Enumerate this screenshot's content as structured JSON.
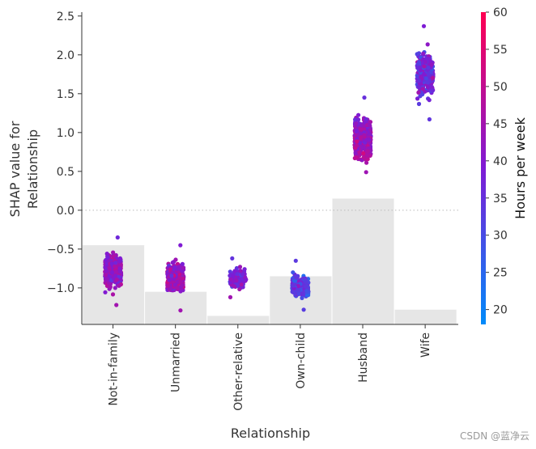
{
  "chart_data": {
    "type": "scatter",
    "subtype": "shap-dependence-strip",
    "title": "",
    "xlabel": "Relationship",
    "ylabel_lines": [
      "SHAP value for",
      "Relationship"
    ],
    "categories": [
      "Not-in-family",
      "Unmarried",
      "Other-relative",
      "Own-child",
      "Husband",
      "Wife"
    ],
    "ylim": [
      -1.47,
      2.55
    ],
    "yticks": [
      -1.0,
      -0.5,
      0.0,
      0.5,
      1.0,
      1.5,
      2.0,
      2.5
    ],
    "ytick_labels": [
      "−1.0",
      "−0.5",
      "0.0",
      "0.5",
      "1.0",
      "1.5",
      "2.0",
      "2.5"
    ],
    "zero_line": "dotted",
    "histogram_background": {
      "description_units": "SHAP-axis level of the grey distribution bars behind each category",
      "tops": [
        -0.45,
        -1.05,
        -1.36,
        -0.85,
        0.15,
        -1.28
      ]
    },
    "series": [
      {
        "name": "Not-in-family",
        "count": 420,
        "ymin": -1.22,
        "ymax": -0.35,
        "center": -0.78,
        "spread": 0.19,
        "color_mean": 42,
        "color_sd": 8
      },
      {
        "name": "Unmarried",
        "count": 300,
        "ymin": -1.29,
        "ymax": -0.45,
        "center": -0.86,
        "spread": 0.16,
        "color_mean": 43,
        "color_sd": 9
      },
      {
        "name": "Other-relative",
        "count": 140,
        "ymin": -1.12,
        "ymax": -0.62,
        "center": -0.88,
        "spread": 0.11,
        "color_mean": 38,
        "color_sd": 8
      },
      {
        "name": "Own-child",
        "count": 260,
        "ymin": -1.28,
        "ymax": -0.65,
        "center": -0.98,
        "spread": 0.13,
        "color_mean": 33,
        "color_sd": 9
      },
      {
        "name": "Husband",
        "count": 600,
        "ymin": 0.49,
        "ymax": 1.45,
        "center": 0.92,
        "spread": 0.22,
        "color_mean": 44,
        "color_sd": 7
      },
      {
        "name": "Wife",
        "count": 280,
        "ymin": 1.17,
        "ymax": 2.37,
        "center": 1.75,
        "spread": 0.25,
        "color_mean": 37,
        "color_sd": 10
      }
    ],
    "colorbar": {
      "label": "Hours per week",
      "min": 18,
      "max": 60,
      "ticks": [
        20,
        25,
        30,
        35,
        40,
        45,
        50,
        55,
        60
      ],
      "colors": [
        "#008bfa",
        "#7e1bd5",
        "#ff0051"
      ]
    }
  },
  "watermark": "CSDN @蓝净云"
}
